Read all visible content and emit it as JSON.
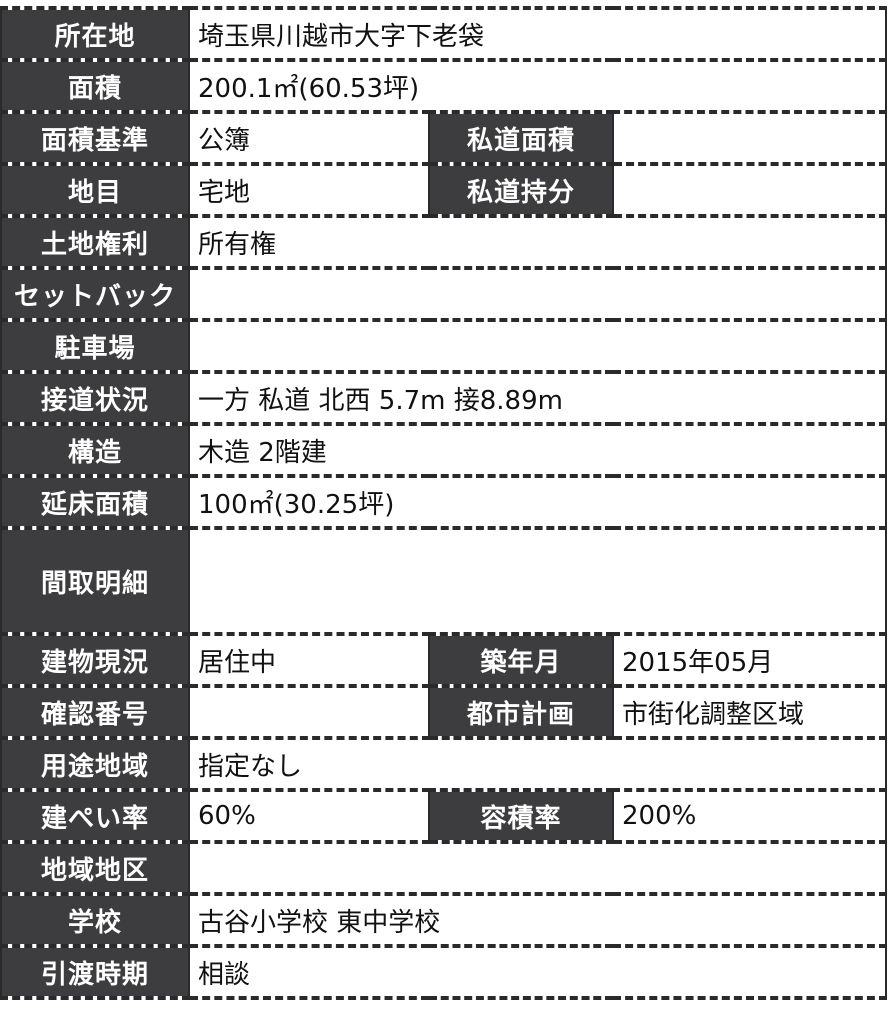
{
  "rows": [
    {
      "label": "所在地",
      "value": "埼玉県川越市大字下老袋"
    },
    {
      "label": "面積",
      "value": "200.1㎡(60.53坪)"
    },
    {
      "label": "面積基準",
      "value": "公簿",
      "label2": "私道面積",
      "value2": ""
    },
    {
      "label": "地目",
      "value": "宅地",
      "label2": "私道持分",
      "value2": ""
    },
    {
      "label": "土地権利",
      "value": "所有権"
    },
    {
      "label": "セットバック",
      "value": ""
    },
    {
      "label": "駐車場",
      "value": ""
    },
    {
      "label": "接道状況",
      "value": "一方 私道 北西 5.7m 接8.89m"
    },
    {
      "label": "構造",
      "value": "木造 2階建"
    },
    {
      "label": "延床面積",
      "value": "100㎡(30.25坪)"
    },
    {
      "label": "間取明細",
      "value": ""
    },
    {
      "label": "建物現況",
      "value": "居住中",
      "label2": "築年月",
      "value2": "2015年05月"
    },
    {
      "label": "確認番号",
      "value": "",
      "label2": "都市計画",
      "value2": "市街化調整区域"
    },
    {
      "label": "用途地域",
      "value": "指定なし"
    },
    {
      "label": "建ぺい率",
      "value": "60%",
      "label2": "容積率",
      "value2": "200%"
    },
    {
      "label": "地域地区",
      "value": ""
    },
    {
      "label": "学校",
      "value": "古谷小学校 東中学校"
    },
    {
      "label": "引渡時期",
      "value": "相談"
    }
  ]
}
